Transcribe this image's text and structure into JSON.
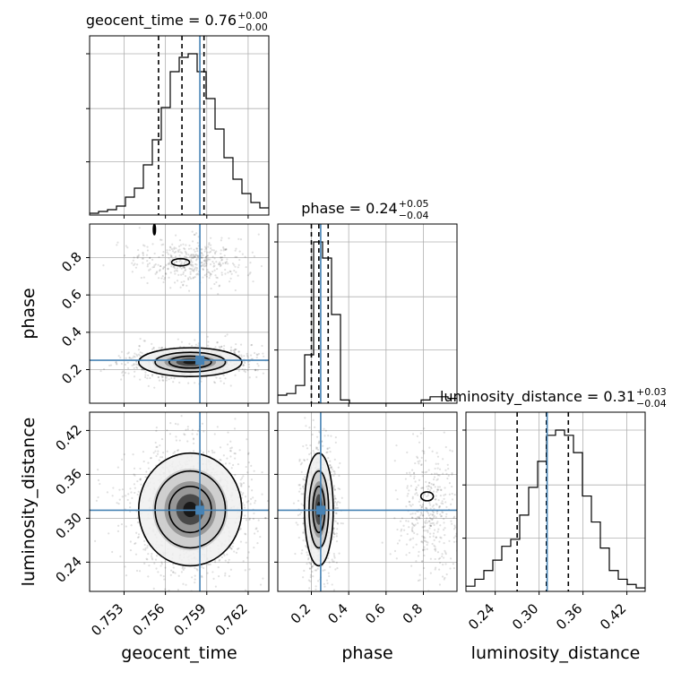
{
  "chart_data": {
    "type": "corner",
    "parameters": [
      "geocent_time",
      "phase",
      "luminosity_distance"
    ],
    "axis_labels": {
      "geocent_time": "geocent_time",
      "phase": "phase",
      "luminosity_distance": "luminosity_distance"
    },
    "titles": [
      {
        "param": "geocent_time",
        "prefix": "geocent_time = 0.76",
        "plus": "+0.00",
        "minus": "−0.00"
      },
      {
        "param": "phase",
        "prefix": "phase = 0.24",
        "plus": "+0.05",
        "minus": "−0.04"
      },
      {
        "param": "luminosity_distance",
        "prefix": "luminosity_distance = 0.31",
        "plus": "+0.03",
        "minus": "−0.04"
      }
    ],
    "ranges": {
      "geocent_time": [
        0.7505,
        0.7635
      ],
      "phase": [
        0.02,
        0.98
      ],
      "luminosity_distance": [
        0.2,
        0.445
      ]
    },
    "ticks": {
      "geocent_time": {
        "values": [
          0.753,
          0.756,
          0.759,
          0.762
        ],
        "labels": [
          "0.753",
          "0.756",
          "0.759",
          "0.762"
        ]
      },
      "phase": {
        "values": [
          0.2,
          0.4,
          0.6,
          0.8
        ],
        "labels": [
          "0.2",
          "0.4",
          "0.6",
          "0.8"
        ]
      },
      "luminosity_distance": {
        "values": [
          0.24,
          0.3,
          0.36,
          0.42
        ],
        "labels": [
          "0.24",
          "0.30",
          "0.36",
          "0.42"
        ]
      }
    },
    "truths": {
      "geocent_time": 0.7585,
      "phase": 0.25,
      "luminosity_distance": 0.311
    },
    "quantiles": {
      "geocent_time": [
        0.7555,
        0.7572,
        0.7588
      ],
      "phase": [
        0.2,
        0.24,
        0.29
      ],
      "luminosity_distance": [
        0.27,
        0.31,
        0.34
      ]
    },
    "histograms": {
      "geocent_time": {
        "edges_start": 0.7505,
        "bin_width": 0.00065,
        "counts": [
          1,
          2,
          3,
          5,
          10,
          15,
          28,
          42,
          60,
          80,
          88,
          90,
          80,
          65,
          48,
          32,
          20,
          12,
          7,
          4
        ]
      },
      "phase": {
        "edges_start": 0.02,
        "bin_width": 0.048,
        "counts": [
          5,
          6,
          11,
          30,
          100,
          90,
          55,
          2,
          0,
          0,
          0,
          0,
          0,
          0,
          0,
          0,
          2,
          4,
          4,
          3
        ]
      },
      "luminosity_distance": {
        "edges_start": 0.2,
        "bin_width": 0.01225,
        "counts": [
          3,
          7,
          12,
          18,
          26,
          30,
          44,
          60,
          75,
          90,
          93,
          90,
          80,
          55,
          40,
          25,
          12,
          7,
          4,
          2
        ]
      }
    },
    "grid": true
  }
}
